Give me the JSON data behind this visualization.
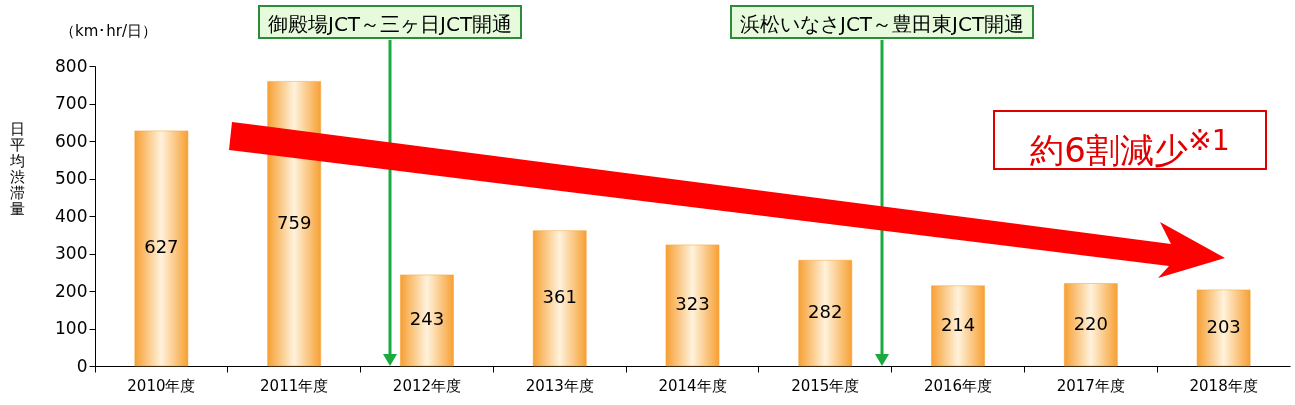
{
  "chart_data": {
    "type": "bar",
    "ylabel": "日平均渋滞量",
    "categories": [
      "2010年度",
      "2011年度",
      "2012年度",
      "2013年度",
      "2014年度",
      "2015年度",
      "2016年度",
      "2017年度",
      "2018年度"
    ],
    "values": [
      627,
      759,
      243,
      361,
      323,
      282,
      214,
      220,
      203
    ],
    "color": "#f7a033",
    "ylim": [
      0,
      800
    ],
    "yticks": [
      0,
      100,
      200,
      300,
      400,
      500,
      600,
      700,
      800
    ],
    "grid": false,
    "data_labels": true,
    "annotations": [
      "御殿場JCT～三ヶ日JCT開通",
      "浜松いなさJCT～豊田東JCT開通",
      "約6割減少$^{※1}$",
      "（km･hr/日）"
    ]
  }
}
